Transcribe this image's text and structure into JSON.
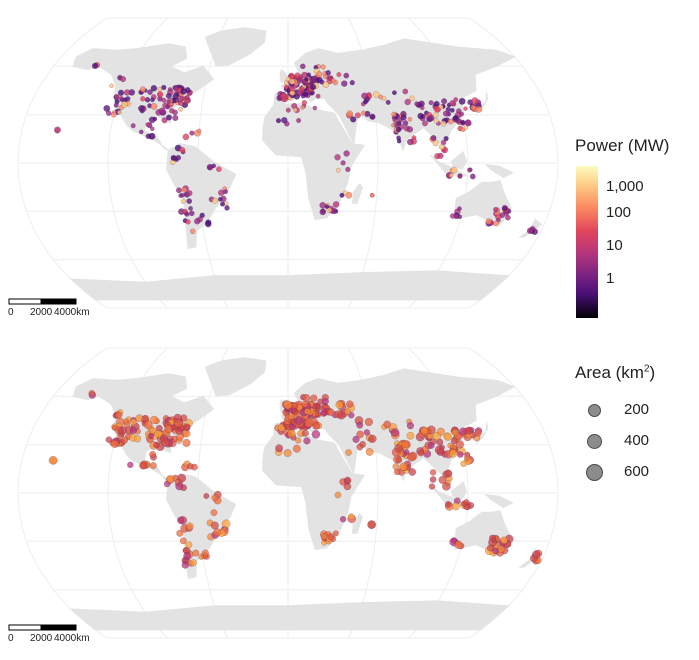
{
  "power_legend": {
    "title": "Power (MW)",
    "ticks": [
      "1,000",
      "100",
      "10",
      "1"
    ]
  },
  "area_legend": {
    "title_prefix": "Area (km",
    "title_sup": "2",
    "title_suffix": ")",
    "sizes": [
      "200",
      "400",
      "600"
    ]
  },
  "scale_bar": {
    "labels": [
      "0",
      "2000",
      "4000km"
    ]
  },
  "colors": {
    "land": "#e3e3e3",
    "ocean": "#ffffff",
    "graticule": "#eeeeee",
    "palette": "inferno"
  }
}
